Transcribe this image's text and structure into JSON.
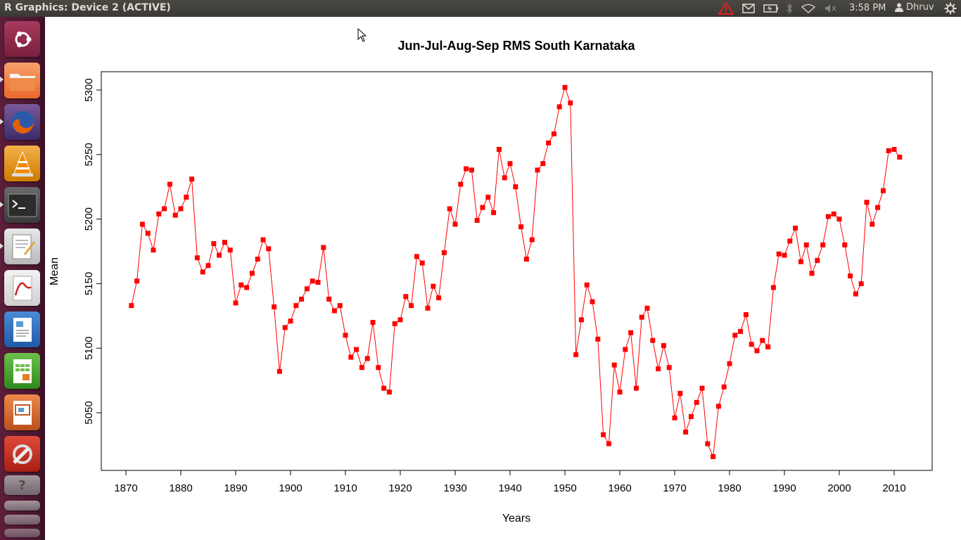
{
  "window": {
    "title": "R Graphics: Device 2 (ACTIVE)"
  },
  "topbar": {
    "time": "3:58 PM",
    "user": "Dhruv"
  },
  "launcher": {
    "items": [
      {
        "name": "dash-home",
        "color": "#7a1f3d"
      },
      {
        "name": "files",
        "color": "#e9692c"
      },
      {
        "name": "firefox",
        "color": "#e66000"
      },
      {
        "name": "vlc",
        "color": "#f08a00"
      },
      {
        "name": "terminal",
        "color": "#2c2c2c"
      },
      {
        "name": "text-editor",
        "color": "#d8d8d8"
      },
      {
        "name": "document-viewer",
        "color": "#c22"
      },
      {
        "name": "libreoffice-writer",
        "color": "#2a6ab7"
      },
      {
        "name": "libreoffice-calc",
        "color": "#3e9a2a"
      },
      {
        "name": "libreoffice-impress",
        "color": "#c8551c"
      },
      {
        "name": "system-settings",
        "color": "#b3261e"
      }
    ]
  },
  "chart_data": {
    "type": "line",
    "title": "Jun-Jul-Aug-Sep RMS South Karnataka",
    "xlabel": "Years",
    "ylabel": "Mean",
    "xlim": [
      1866.3,
      1862.5
    ],
    "xticks": [
      1870,
      1880,
      1890,
      1900,
      1910,
      1920,
      1930,
      1940,
      1950,
      1960,
      1970,
      1980,
      1990,
      2000,
      2010
    ],
    "yticks": [
      5050,
      5100,
      5150,
      5200,
      5250,
      5300
    ],
    "color": "#ff0000",
    "x": [
      1871,
      1872,
      1873,
      1874,
      1875,
      1876,
      1877,
      1878,
      1879,
      1880,
      1881,
      1882,
      1883,
      1884,
      1885,
      1886,
      1887,
      1888,
      1889,
      1890,
      1891,
      1892,
      1893,
      1894,
      1895,
      1896,
      1897,
      1898,
      1899,
      1900,
      1901,
      1902,
      1903,
      1904,
      1905,
      1906,
      1907,
      1908,
      1909,
      1910,
      1911,
      1912,
      1913,
      1914,
      1915,
      1916,
      1917,
      1918,
      1919,
      1920,
      1921,
      1922,
      1923,
      1924,
      1925,
      1926,
      1927,
      1928,
      1929,
      1930,
      1931,
      1932,
      1933,
      1934,
      1935,
      1936,
      1937,
      1938,
      1939,
      1940,
      1941,
      1942,
      1943,
      1944,
      1945,
      1946,
      1947,
      1948,
      1949,
      1950,
      1951,
      1952,
      1953,
      1954,
      1955,
      1956,
      1957,
      1958,
      1959,
      1960,
      1961,
      1962,
      1963,
      1964,
      1965,
      1966,
      1967,
      1968,
      1969,
      1970,
      1971,
      1972,
      1973,
      1974,
      1975,
      1976,
      1977,
      1978,
      1979,
      1980,
      1981,
      1982,
      1983,
      1984,
      1985,
      1986,
      1987,
      1988,
      1989,
      1990,
      1991,
      1992,
      1993,
      1994,
      1995,
      1996,
      1997,
      1998,
      1999,
      2000,
      2001,
      2002,
      2003,
      2004,
      2005,
      2006,
      2007,
      2008,
      2009,
      2010,
      2011
    ],
    "y": [
      5133,
      5152,
      5196,
      5189,
      5176,
      5204,
      5208,
      5227,
      5203,
      5208,
      5217,
      5231,
      5170,
      5159,
      5164,
      5181,
      5172,
      5182,
      5176,
      5135,
      5149,
      5147,
      5158,
      5169,
      5184,
      5177,
      5132,
      5082,
      5116,
      5121,
      5133,
      5138,
      5146,
      5152,
      5151,
      5178,
      5138,
      5129,
      5133,
      5110,
      5093,
      5099,
      5085,
      5092,
      5120,
      5085,
      5069,
      5066,
      5119,
      5122,
      5140,
      5133,
      5171,
      5166,
      5131,
      5148,
      5139,
      5174,
      5208,
      5196,
      5227,
      5239,
      5238,
      5199,
      5209,
      5217,
      5205,
      5254,
      5232,
      5243,
      5225,
      5194,
      5169,
      5184,
      5238,
      5243,
      5259,
      5266,
      5287,
      5302,
      5290,
      5095,
      5122,
      5149,
      5136,
      5107,
      5033,
      5026,
      5087,
      5066,
      5099,
      5112,
      5069,
      5124,
      5131,
      5106,
      5084,
      5102,
      5085,
      5046,
      5065,
      5035,
      5047,
      5058,
      5069,
      5026,
      5016,
      5055,
      5070,
      5088,
      5110,
      5113,
      5126,
      5103,
      5098,
      5106,
      5101,
      5147,
      5173,
      5172,
      5183,
      5193,
      5167,
      5180,
      5158,
      5168,
      5180,
      5202,
      5204,
      5200,
      5180,
      5156,
      5142,
      5150,
      5213,
      5196,
      5209,
      5222,
      5253,
      5254,
      5248
    ]
  }
}
